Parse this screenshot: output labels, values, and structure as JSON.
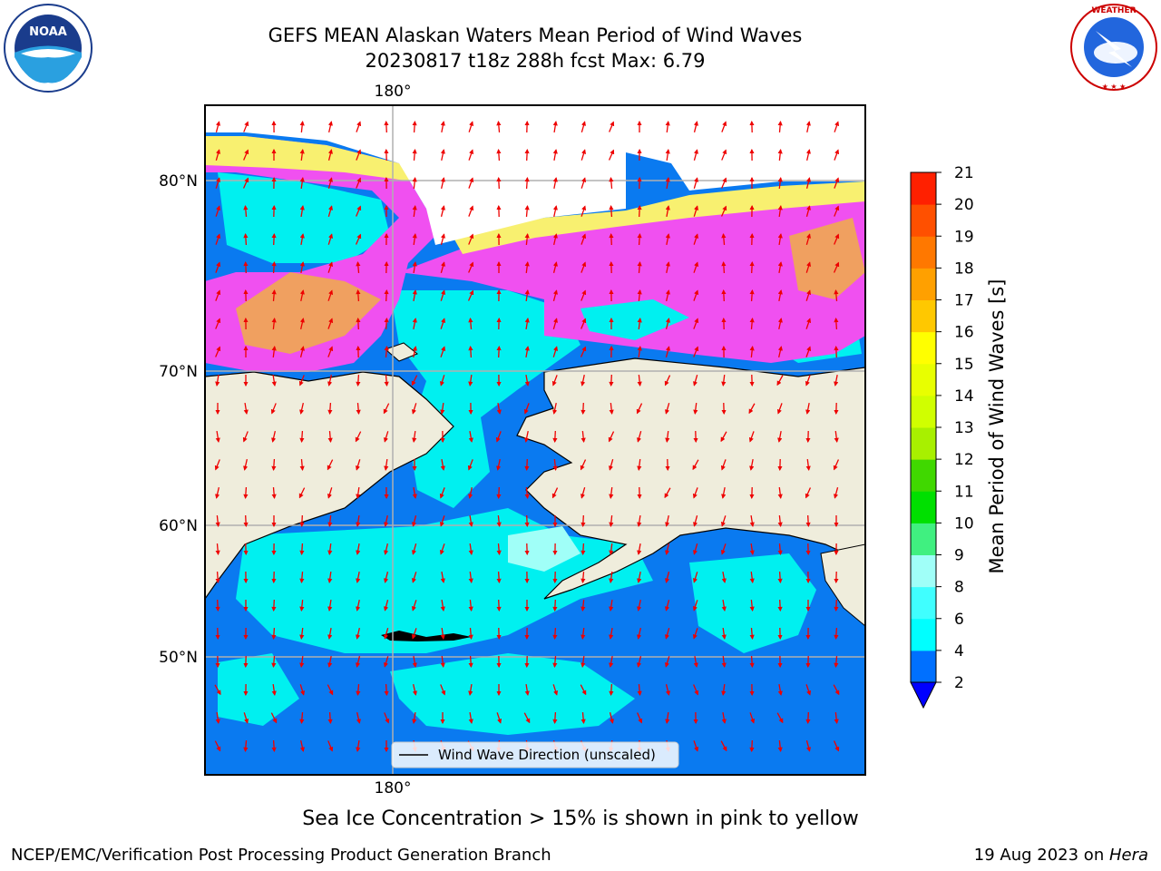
{
  "header": {
    "title_line1": "GEFS MEAN Alaskan Waters Mean Period of Wind Waves",
    "title_line2": "20230817 t18z 288h fcst   Max: 6.79"
  },
  "logos": {
    "left": {
      "icon": "noaa-logo",
      "text": "NOAA"
    },
    "right": {
      "icon": "national-weather-service-logo",
      "text": "NATIONAL WEATHER SERVICE"
    }
  },
  "map": {
    "lat_labels": [
      "80°N",
      "70°N",
      "60°N",
      "50°N"
    ],
    "lon_label_top": "180°",
    "lon_label_bottom": "180°",
    "legend_label": "Wind Wave Direction (unscaled)",
    "colors": {
      "land": "#efeddc",
      "ocean_low": "#0a7af0",
      "ocean_mid": "#00f0f0",
      "ice_pink": "#f050f0",
      "ice_orange": "#f0a060",
      "ice_yellow": "#f8f070",
      "arrow": "#ee0000"
    }
  },
  "colorbar": {
    "label": "Mean Period of Wind Waves [s]",
    "ticks": [
      "2",
      "4",
      "6",
      "8",
      "9",
      "10",
      "11",
      "12",
      "13",
      "14",
      "15",
      "16",
      "17",
      "18",
      "19",
      "20",
      "21"
    ],
    "colors": [
      "#0070ff",
      "#00ffff",
      "#40ffff",
      "#a0fff8",
      "#40f080",
      "#00e000",
      "#40d800",
      "#a8f000",
      "#d0ff00",
      "#e8ff00",
      "#ffff00",
      "#ffc800",
      "#ffa000",
      "#ff7800",
      "#ff5000",
      "#ff2000"
    ],
    "extend_color": "#0000ff"
  },
  "caption": "Sea Ice Concentration > 15% is shown in pink to yellow",
  "footer": {
    "left": "NCEP/EMC/Verification Post Processing Product Generation Branch",
    "right_date": "19 Aug 2023 on ",
    "right_machine": "Hera"
  }
}
